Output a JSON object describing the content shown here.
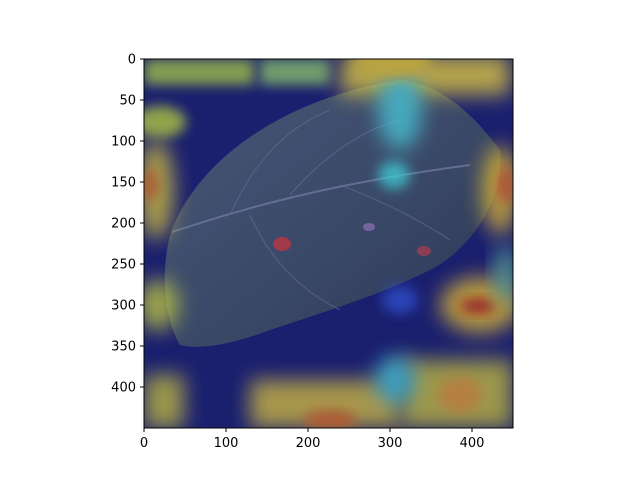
{
  "figure": {
    "type": "heatmap-overlay",
    "image_extent": {
      "x": [
        0,
        450
      ],
      "y": [
        0,
        450
      ]
    },
    "x_ticks": [
      "0",
      "100",
      "200",
      "300",
      "400"
    ],
    "y_ticks": [
      "0",
      "50",
      "100",
      "150",
      "200",
      "250",
      "300",
      "350",
      "400"
    ],
    "colormap": "jet",
    "colors": {
      "background": "#ffffff",
      "axis": "#000000",
      "overlay_base": "#1a1f6e"
    }
  }
}
